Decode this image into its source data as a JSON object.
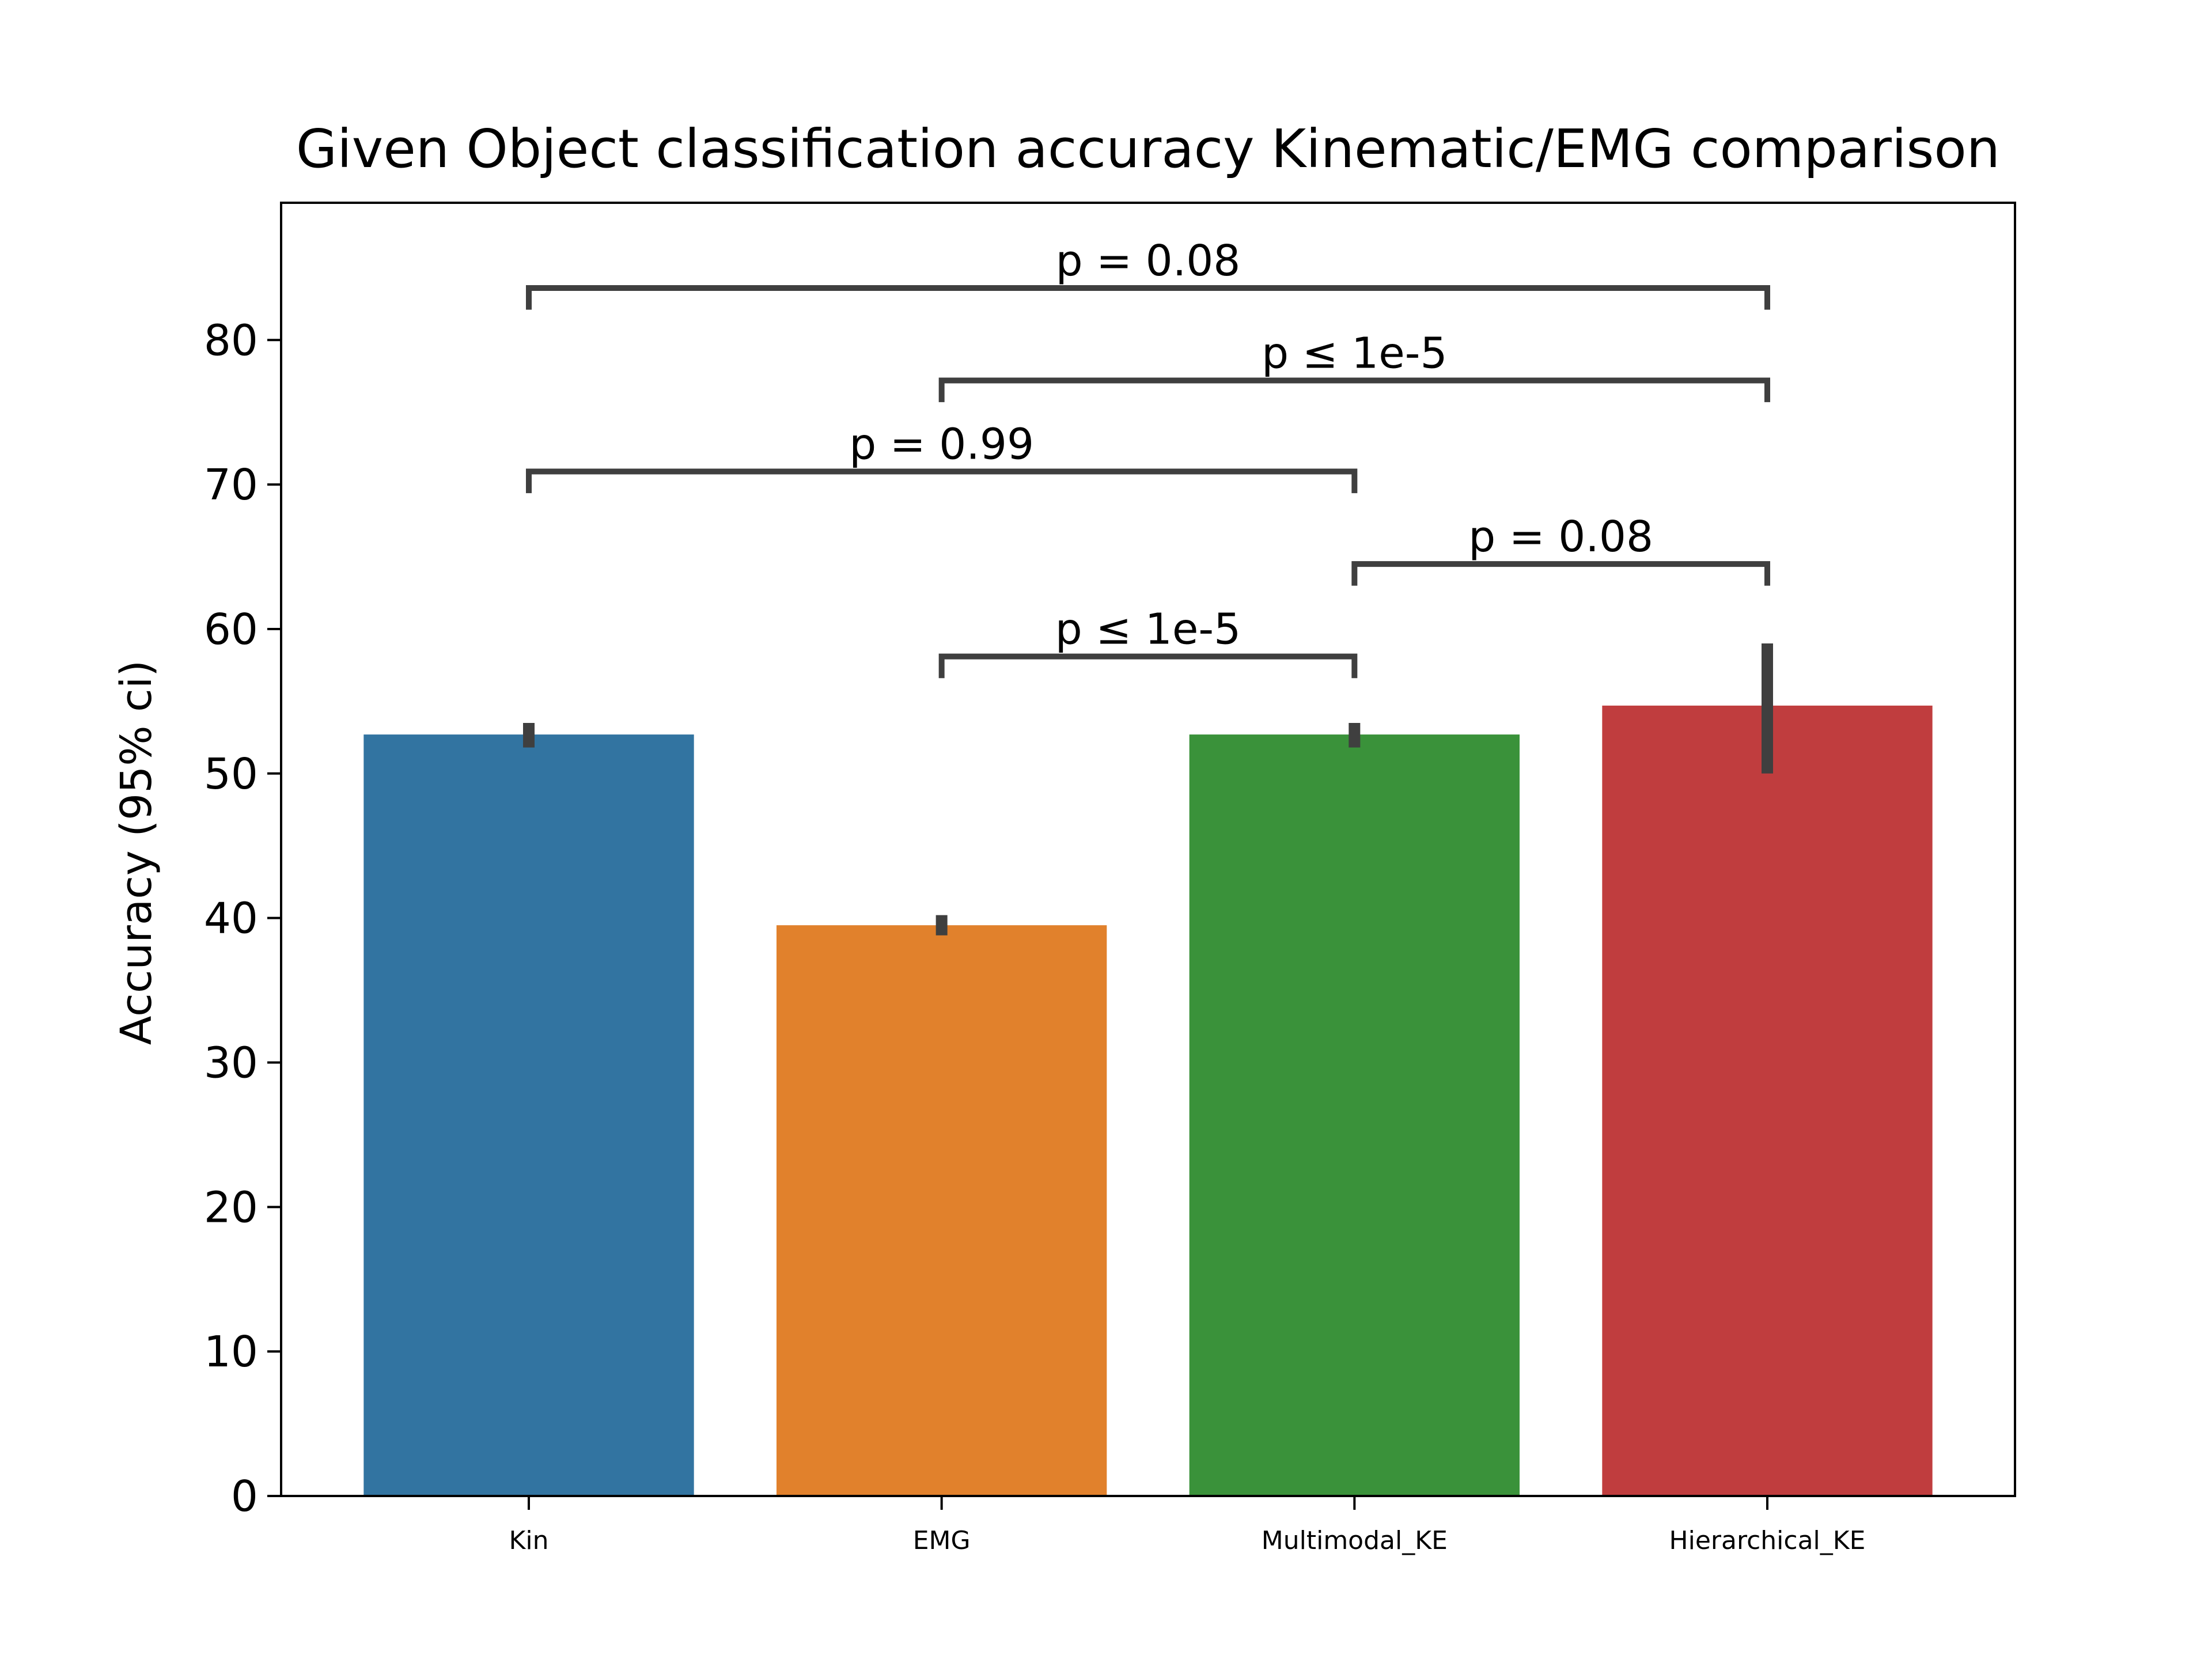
{
  "chart_data": {
    "type": "bar",
    "title": "Given Object classification accuracy Kinematic/EMG comparison",
    "xlabel": "",
    "ylabel": "Accuracy (95% ci)",
    "ylim": [
      0,
      89.5
    ],
    "yticks": [
      0,
      10,
      20,
      30,
      40,
      50,
      60,
      70,
      80
    ],
    "grid": false,
    "categories": [
      "Kin",
      "EMG",
      "Multimodal_KE",
      "Hierarchical_KE"
    ],
    "values": [
      52.7,
      39.5,
      52.7,
      54.7
    ],
    "error_low": [
      51.8,
      38.8,
      51.8,
      50.0
    ],
    "error_high": [
      53.5,
      40.2,
      53.5,
      59.0
    ],
    "colors": [
      "#3274a1",
      "#e1812c",
      "#3a923a",
      "#c03d3e"
    ],
    "error_color": "#3f3f3f",
    "significance": [
      {
        "from": 1,
        "to": 2,
        "y": 58.1,
        "drop": 1.5,
        "label": "p ≤ 1e-5"
      },
      {
        "from": 2,
        "to": 3,
        "y": 64.5,
        "drop": 1.5,
        "label": "p = 0.08"
      },
      {
        "from": 0,
        "to": 2,
        "y": 70.9,
        "drop": 1.5,
        "label": "p = 0.99"
      },
      {
        "from": 1,
        "to": 3,
        "y": 77.2,
        "drop": 1.5,
        "label": "p ≤ 1e-5"
      },
      {
        "from": 0,
        "to": 3,
        "y": 83.6,
        "drop": 1.5,
        "label": "p = 0.08"
      }
    ]
  }
}
